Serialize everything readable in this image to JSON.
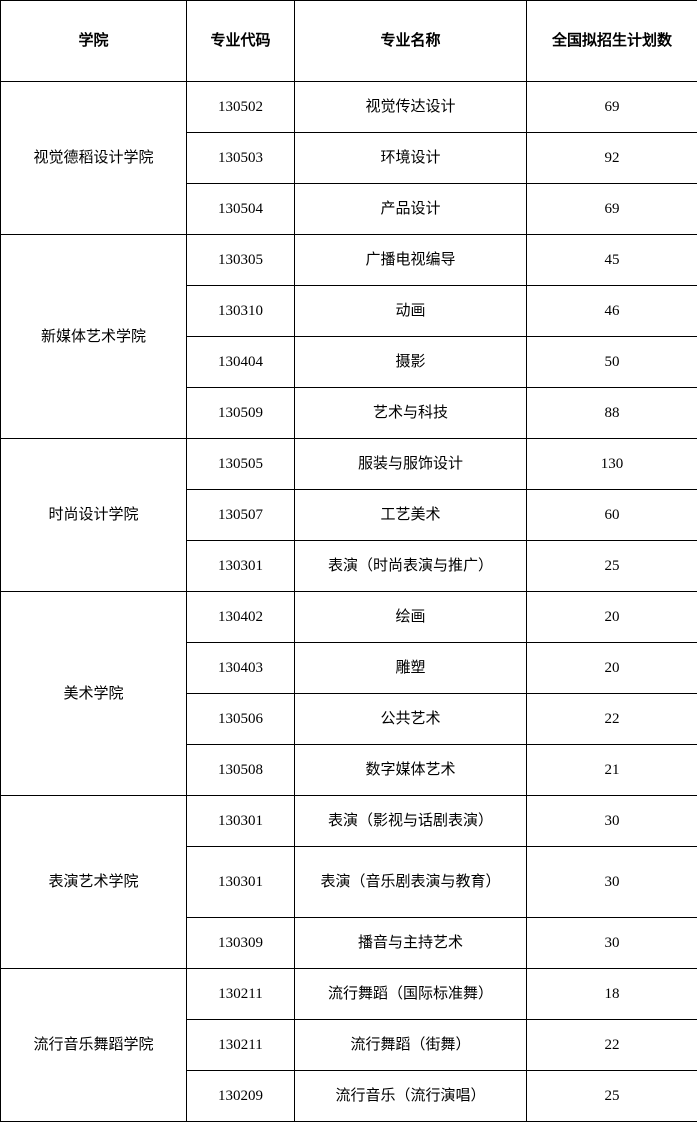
{
  "table": {
    "columns": {
      "college": "学院",
      "code": "专业代码",
      "major": "专业名称",
      "plan": "全国拟招生计划数"
    },
    "col_widths": {
      "college": 186,
      "code": 108,
      "major": 232,
      "plan": 171
    },
    "border_color": "#000000",
    "background_color": "#ffffff",
    "text_color": "#000000",
    "header_fontsize": 15,
    "cell_fontsize": 15,
    "groups": [
      {
        "college": "视觉德稻设计学院",
        "rows": [
          {
            "code": "130502",
            "major": "视觉传达设计",
            "plan": "69"
          },
          {
            "code": "130503",
            "major": "环境设计",
            "plan": "92"
          },
          {
            "code": "130504",
            "major": "产品设计",
            "plan": "69"
          }
        ]
      },
      {
        "college": "新媒体艺术学院",
        "rows": [
          {
            "code": "130305",
            "major": "广播电视编导",
            "plan": "45"
          },
          {
            "code": "130310",
            "major": "动画",
            "plan": "46"
          },
          {
            "code": "130404",
            "major": "摄影",
            "plan": "50"
          },
          {
            "code": "130509",
            "major": "艺术与科技",
            "plan": "88"
          }
        ]
      },
      {
        "college": "时尚设计学院",
        "rows": [
          {
            "code": "130505",
            "major": "服装与服饰设计",
            "plan": "130"
          },
          {
            "code": "130507",
            "major": "工艺美术",
            "plan": "60"
          },
          {
            "code": "130301",
            "major": "表演（时尚表演与推广）",
            "plan": "25"
          }
        ]
      },
      {
        "college": "美术学院",
        "rows": [
          {
            "code": "130402",
            "major": "绘画",
            "plan": "20"
          },
          {
            "code": "130403",
            "major": "雕塑",
            "plan": "20"
          },
          {
            "code": "130506",
            "major": "公共艺术",
            "plan": "22"
          },
          {
            "code": "130508",
            "major": "数字媒体艺术",
            "plan": "21"
          }
        ]
      },
      {
        "college": "表演艺术学院",
        "rows": [
          {
            "code": "130301",
            "major": "表演（影视与话剧表演）",
            "plan": "30"
          },
          {
            "code": "130301",
            "major": "表演（音乐剧表演与教育）",
            "plan": "30",
            "tall": true
          },
          {
            "code": "130309",
            "major": "播音与主持艺术",
            "plan": "30"
          }
        ]
      },
      {
        "college": "流行音乐舞蹈学院",
        "rows": [
          {
            "code": "130211",
            "major": "流行舞蹈（国际标准舞）",
            "plan": "18"
          },
          {
            "code": "130211",
            "major": "流行舞蹈（街舞）",
            "plan": "22"
          },
          {
            "code": "130209",
            "major": "流行音乐（流行演唱）",
            "plan": "25"
          }
        ]
      }
    ]
  }
}
